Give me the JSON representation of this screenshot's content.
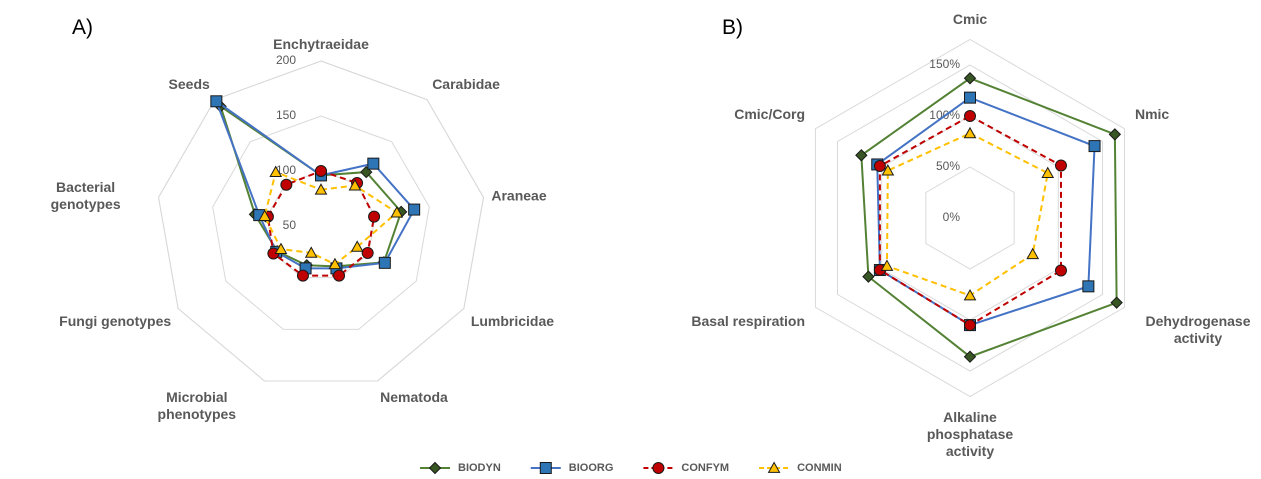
{
  "chart_data": [
    {
      "type": "radar",
      "title": "A)",
      "categories": [
        "Enchytraeidae",
        "Carabidae",
        "Araneae",
        "Lumbricidae",
        "Nematoda",
        "Microbial phenotypes",
        "Fungi genotypes",
        "Bacterial genotypes",
        "Seeds"
      ],
      "ylim": [
        50,
        200
      ],
      "yticks": [
        50,
        100,
        150,
        200
      ],
      "grid": true,
      "series": [
        {
          "name": "BIODYN",
          "color": "#548235",
          "marker_color": "#375623",
          "marker": "diamond",
          "dashed": false,
          "values": [
            96,
            114,
            124,
            116,
            89,
            88,
            96,
            111,
            192
          ]
        },
        {
          "name": "BIOORG",
          "color": "#4472c4",
          "marker_color": "#2e75b6",
          "marker": "square",
          "dashed": false,
          "values": [
            96,
            124,
            136,
            117,
            91,
            91,
            97,
            107,
            198
          ]
        },
        {
          "name": "CONFYM",
          "color": "#c00000",
          "marker_color": "#c00000",
          "marker": "circle",
          "dashed": true,
          "values": [
            100,
            101,
            99,
            99,
            98,
            98,
            100,
            99,
            99
          ]
        },
        {
          "name": "CONMIN",
          "color": "#ffc000",
          "marker_color": "#ffc000",
          "marker": "triangle",
          "dashed": true,
          "values": [
            83,
            98,
            120,
            88,
            87,
            76,
            92,
            102,
            114
          ]
        }
      ]
    },
    {
      "type": "radar",
      "title": "B)",
      "categories": [
        "Cmic",
        "Nmic",
        "Dehydrogenase activity",
        "Alkaline phosphatase activity",
        "Basal respiration",
        "Cmic/Corg"
      ],
      "ylim": [
        0,
        175
      ],
      "yticks": [
        {
          "value": 0,
          "label": "0%"
        },
        {
          "value": 50,
          "label": "50%"
        },
        {
          "value": 100,
          "label": "100%"
        },
        {
          "value": 150,
          "label": "150%"
        }
      ],
      "grid": true,
      "series": [
        {
          "name": "BIODYN",
          "color": "#548235",
          "marker_color": "#375623",
          "marker": "diamond",
          "dashed": false,
          "values": [
            137,
            164,
            166,
            136,
            115,
            123
          ]
        },
        {
          "name": "BIOORG",
          "color": "#4472c4",
          "marker_color": "#2e75b6",
          "marker": "square",
          "dashed": false,
          "values": [
            118,
            141,
            134,
            105,
            102,
            105
          ]
        },
        {
          "name": "CONFYM",
          "color": "#c00000",
          "marker_color": "#c00000",
          "marker": "circle",
          "dashed": true,
          "values": [
            100,
            103,
            103,
            105,
            102,
            102
          ]
        },
        {
          "name": "CONMIN",
          "color": "#ffc000",
          "marker_color": "#ffc000",
          "marker": "triangle",
          "dashed": true,
          "values": [
            83,
            88,
            71,
            76,
            94,
            93
          ]
        }
      ]
    }
  ]
}
